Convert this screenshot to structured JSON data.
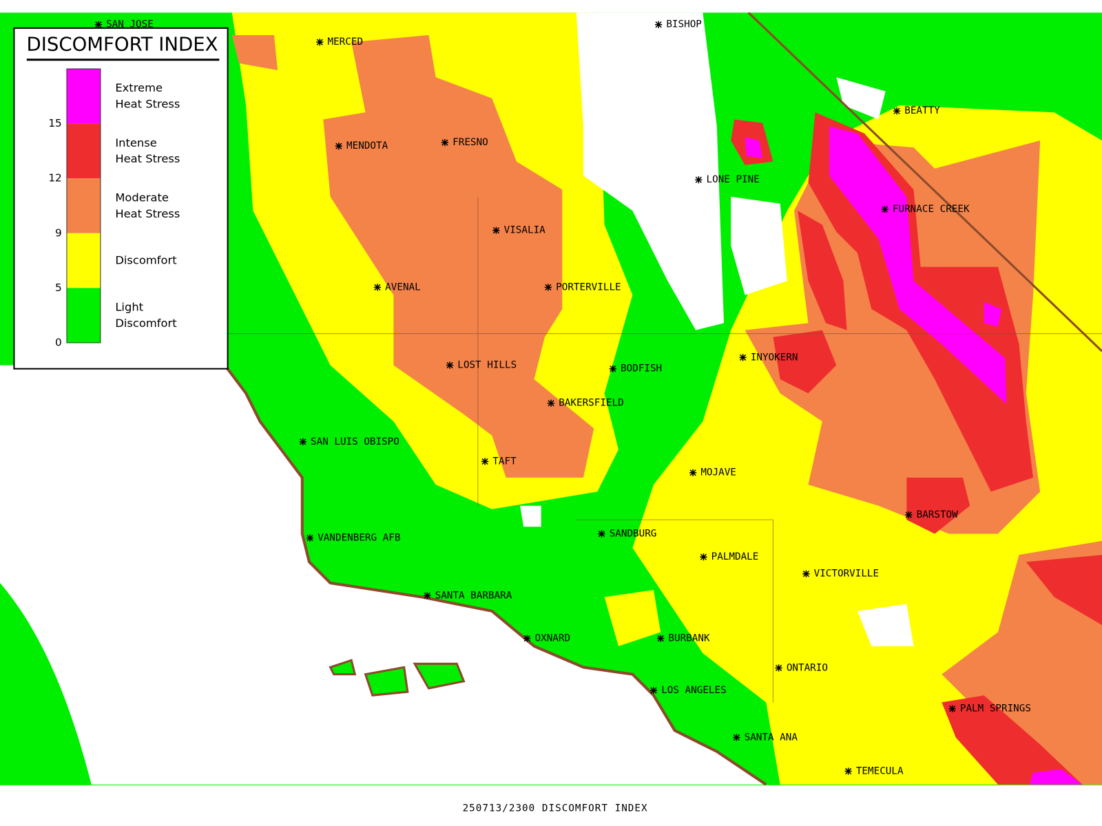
{
  "legend": {
    "title": "DISCOMFORT INDEX",
    "items": [
      {
        "lines": [
          "Extreme",
          "Heat Stress"
        ],
        "color": "#ff00ff"
      },
      {
        "lines": [
          "Intense",
          "Heat Stress"
        ],
        "color": "#ee2e2e"
      },
      {
        "lines": [
          "Moderate",
          "Heat Stress"
        ],
        "color": "#f4834a"
      },
      {
        "lines": [
          "Discomfort"
        ],
        "color": "#ffff00"
      },
      {
        "lines": [
          "Light",
          "Discomfort"
        ],
        "color": "#00ee00"
      }
    ],
    "ticks": [
      0,
      5,
      9,
      12,
      15
    ]
  },
  "cities": [
    "SAN JOSE",
    "MERCED",
    "BISHOP",
    "BEATTY",
    "FRESNO",
    "MENDOTA",
    "LONE PINE",
    "FURNACE CREEK",
    "VISALIA",
    "AVENAL",
    "PORTERVILLE",
    "INYOKERN",
    "LOST HILLS",
    "BODFISH",
    "BAKERSFIELD",
    "SAN LUIS OBISPO",
    "TAFT",
    "MOJAVE",
    "BARSTOW",
    "SANDBURG",
    "VANDENBERG AFB",
    "PALMDALE",
    "VICTORVILLE",
    "SANTA BARBARA",
    "OXNARD",
    "BURBANK",
    "ONTARIO",
    "LOS ANGELES",
    "PALM SPRINGS",
    "SANTA ANA",
    "TEMECULA"
  ],
  "footer": "250713/2300 DISCOMFORT INDEX"
}
